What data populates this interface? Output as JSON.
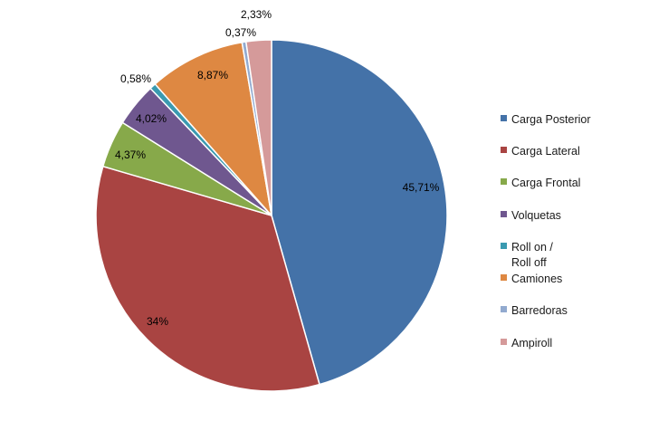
{
  "chart_data": {
    "type": "pie",
    "title": "",
    "legend_position": "right",
    "slices": [
      {
        "label": "Carga Posterior",
        "value": 45.71,
        "display": "45,71%",
        "color": "#4472A8"
      },
      {
        "label": "Carga Lateral",
        "value": 34.0,
        "display": "34%",
        "color": "#A94442"
      },
      {
        "label": "Carga Frontal",
        "value": 4.37,
        "display": "4,37%",
        "color": "#87A94A"
      },
      {
        "label": "Volquetas",
        "value": 4.02,
        "display": "4,02%",
        "color": "#6F578F"
      },
      {
        "label": "Roll on / Roll off",
        "label_lines": [
          "Roll on /",
          "Roll off"
        ],
        "value": 0.58,
        "display": "0,58%",
        "color": "#3A9AB0"
      },
      {
        "label": "Camiones",
        "value": 8.87,
        "display": "8,87%",
        "color": "#DE8842"
      },
      {
        "label": "Barredoras",
        "value": 0.37,
        "display": "0,37%",
        "color": "#92AACF"
      },
      {
        "label": "Ampiroll",
        "value": 2.33,
        "display": "2,33%",
        "color": "#D59A9A"
      }
    ]
  }
}
